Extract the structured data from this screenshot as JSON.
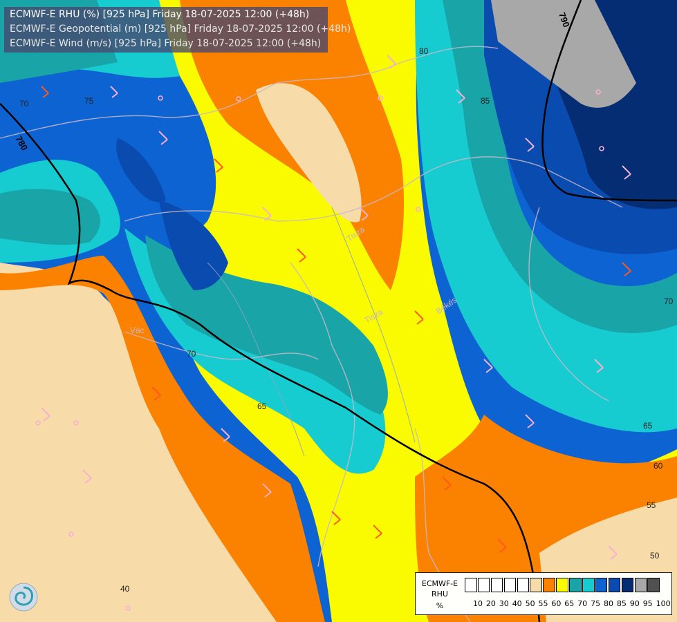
{
  "header": {
    "line1": "ECMWF-E RHU (%) [925 hPa] Friday 18-07-2025 12:00 (+48h)",
    "line2": "ECMWF-E Geopotential (m) [925 hPa] Friday 18-07-2025 12:00 (+48h)",
    "line3": "ECMWF-E Wind (m/s) [925 hPa] Friday 18-07-2025 12:00 (+48h)"
  },
  "legend": {
    "line1": "ECMWF-E",
    "line2": "RHU",
    "line3": "%",
    "levels": [
      "10",
      "20",
      "30",
      "40",
      "50",
      "55",
      "60",
      "65",
      "70",
      "75",
      "80",
      "85",
      "90",
      "95",
      "100"
    ],
    "colors": [
      "#ffffff",
      "#ffffff",
      "#ffffff",
      "#ffffff",
      "#ffffff",
      "#f7dcaa",
      "#fb8200",
      "#fafa00",
      "#19a5a8",
      "#16ccd0",
      "#0e63d2",
      "#0a4bb0",
      "#042d74",
      "#a8a8a8",
      "#505050"
    ]
  },
  "contour_labels": {
    "geopotential": [
      "780",
      "790",
      "780"
    ],
    "rhu": [
      "70",
      "75",
      "80",
      "85",
      "70",
      "70",
      "65",
      "65",
      "60",
      "55",
      "50",
      "40"
    ]
  },
  "place_labels": [
    "Vác",
    "Tisza",
    "Békés",
    "Tisza"
  ],
  "field_colors": {
    "c55": "#f7dcaa",
    "c60": "#fb8200",
    "c65": "#fafa00",
    "c70": "#19a5a8",
    "c75": "#16ccd0",
    "c80": "#0e63d2",
    "c85": "#0a4bb0",
    "c90": "#042d74",
    "c95": "#a8a8a8",
    "geopotential_line": "#000000",
    "wind_orange": "#ff5a1a",
    "wind_pink": "#f8b0d0"
  }
}
